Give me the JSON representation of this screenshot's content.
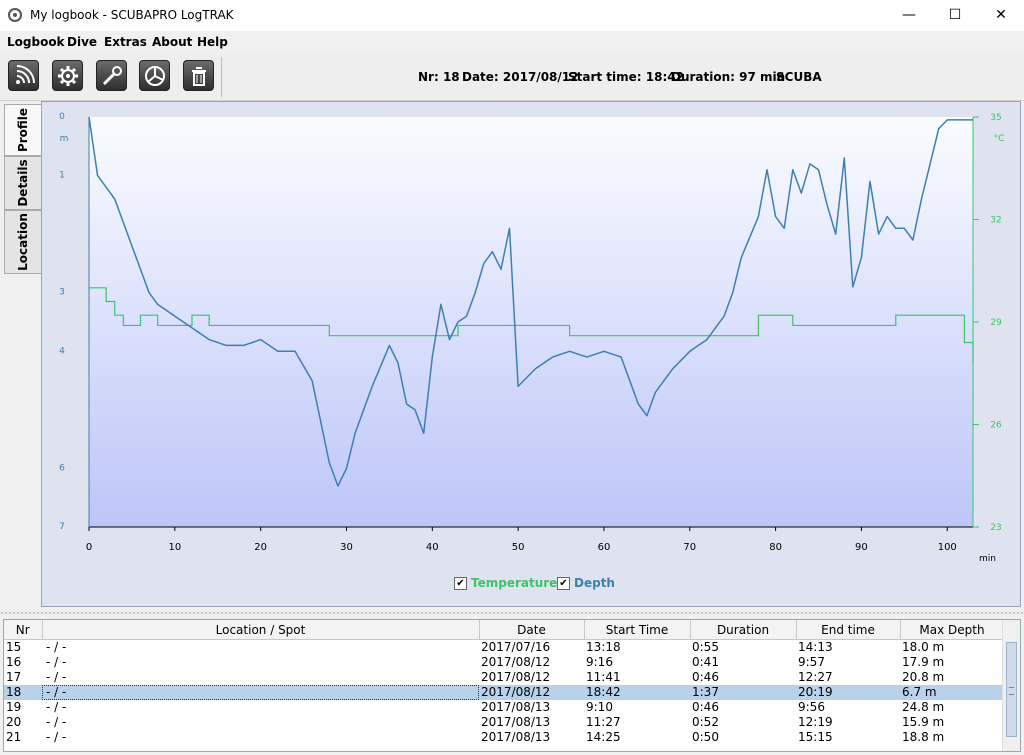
{
  "window": {
    "title": "My logbook - SCUBAPRO LogTRAK",
    "minimize": "—",
    "maximize": "☐",
    "close": "✕"
  },
  "menu": [
    "Logbook",
    "Dive",
    "Extras",
    "About",
    "Help"
  ],
  "toolbar": {
    "buttons": [
      "download-icon",
      "settings-icon",
      "tools-icon",
      "statistics-icon",
      "delete-icon"
    ],
    "dive_info": {
      "nr": "Nr: 18",
      "date": "Date: 2017/08/12",
      "start": "Start time: 18:42",
      "duration": "Duration: 97 min",
      "type": "SCUBA"
    }
  },
  "side_tabs": [
    "Profile",
    "Details",
    "Location"
  ],
  "chart_data": {
    "type": "line",
    "x_unit": "min",
    "x_ticks": [
      "0",
      "10",
      "20",
      "30",
      "40",
      "50",
      "60",
      "70",
      "80",
      "90",
      "100"
    ],
    "xlim": [
      0,
      103
    ],
    "left_axis": {
      "unit": "m",
      "ticks": [
        "0",
        "1",
        "3",
        "4",
        "6",
        "7"
      ],
      "ylim": [
        0,
        7
      ]
    },
    "right_axis": {
      "unit": "°C",
      "ticks": [
        "35",
        "32",
        "29",
        "26",
        "23"
      ],
      "ylim": [
        23,
        35
      ]
    },
    "series": [
      {
        "name": "Depth",
        "color": "#3d7fb0",
        "x": [
          0,
          1,
          2,
          3,
          4,
          5,
          6,
          7,
          8,
          10,
          12,
          14,
          16,
          18,
          20,
          22,
          24,
          26,
          27,
          28,
          29,
          30,
          31,
          33,
          35,
          36,
          37,
          38,
          39,
          40,
          41,
          42,
          43,
          44,
          45,
          46,
          47,
          48,
          49,
          50,
          52,
          54,
          56,
          58,
          60,
          62,
          64,
          65,
          66,
          67,
          68,
          70,
          72,
          74,
          75,
          76,
          78,
          79,
          80,
          81,
          82,
          83,
          84,
          85,
          86,
          87,
          88,
          89,
          90,
          91,
          92,
          93,
          94,
          95,
          96,
          97,
          98,
          99,
          100,
          101,
          102,
          103
        ],
        "y": [
          0.0,
          1.0,
          1.2,
          1.4,
          1.8,
          2.2,
          2.6,
          3.0,
          3.2,
          3.4,
          3.6,
          3.8,
          3.9,
          3.9,
          3.8,
          4.0,
          4.0,
          4.5,
          5.2,
          5.9,
          6.3,
          6.0,
          5.4,
          4.6,
          3.9,
          4.2,
          4.9,
          5.0,
          5.4,
          4.1,
          3.2,
          3.8,
          3.5,
          3.4,
          3.0,
          2.5,
          2.3,
          2.6,
          1.9,
          4.6,
          4.3,
          4.1,
          4.0,
          4.1,
          4.0,
          4.1,
          4.9,
          5.1,
          4.7,
          4.5,
          4.3,
          4.0,
          3.8,
          3.4,
          3.0,
          2.4,
          1.7,
          0.9,
          1.7,
          1.9,
          0.9,
          1.3,
          0.8,
          0.9,
          1.5,
          2.0,
          0.7,
          2.9,
          2.4,
          1.1,
          2.0,
          1.7,
          1.9,
          1.9,
          2.1,
          1.4,
          0.8,
          0.2,
          0.05,
          0.05,
          0.05,
          0.05
        ]
      },
      {
        "name": "Temperature",
        "color": "#3cc46a",
        "x": [
          0,
          1,
          2,
          3,
          4,
          6,
          8,
          10,
          12,
          14,
          16,
          18,
          20,
          22,
          24,
          26,
          28,
          30,
          33,
          35,
          37,
          40,
          43,
          45,
          48,
          50,
          53,
          55,
          56,
          58,
          60,
          63,
          65,
          67,
          70,
          73,
          75,
          77,
          78,
          80,
          82,
          84,
          86,
          88,
          90,
          92,
          94,
          96,
          98,
          100,
          101,
          102,
          103
        ],
        "y": [
          30.0,
          30.0,
          29.6,
          29.2,
          28.9,
          29.2,
          28.9,
          28.9,
          29.2,
          28.9,
          28.9,
          28.9,
          28.9,
          28.9,
          28.9,
          28.9,
          28.6,
          28.6,
          28.6,
          28.6,
          28.6,
          28.6,
          28.9,
          28.9,
          28.9,
          28.9,
          28.9,
          28.9,
          28.6,
          28.6,
          28.6,
          28.6,
          28.6,
          28.6,
          28.6,
          28.6,
          28.6,
          28.6,
          29.2,
          29.2,
          28.9,
          28.9,
          28.9,
          28.9,
          28.9,
          28.9,
          29.2,
          29.2,
          29.2,
          29.2,
          29.2,
          28.4,
          27.8
        ]
      }
    ],
    "legend": [
      "Temperature",
      "Depth"
    ],
    "legend_position": "bottom-center",
    "grid": false
  },
  "table": {
    "columns": [
      "Nr",
      "Location / Spot",
      "Date",
      "Start Time",
      "Duration",
      "End time",
      "Max Depth"
    ],
    "rows": [
      [
        "15",
        "- / -",
        "2017/07/16",
        "13:18",
        "0:55",
        "14:13",
        "18.0 m"
      ],
      [
        "16",
        "- / -",
        "2017/08/12",
        "9:16",
        "0:41",
        "9:57",
        "17.9 m"
      ],
      [
        "17",
        "- / -",
        "2017/08/12",
        "11:41",
        "0:46",
        "12:27",
        "20.8 m"
      ],
      [
        "18",
        "- / -",
        "2017/08/12",
        "18:42",
        "1:37",
        "20:19",
        "6.7 m"
      ],
      [
        "19",
        "- / -",
        "2017/08/13",
        "9:10",
        "0:46",
        "9:56",
        "24.8 m"
      ],
      [
        "20",
        "- / -",
        "2017/08/13",
        "11:27",
        "0:52",
        "12:19",
        "15.9 m"
      ],
      [
        "21",
        "- / -",
        "2017/08/13",
        "14:25",
        "0:50",
        "15:15",
        "18.8 m"
      ]
    ],
    "selected_row": 3
  }
}
